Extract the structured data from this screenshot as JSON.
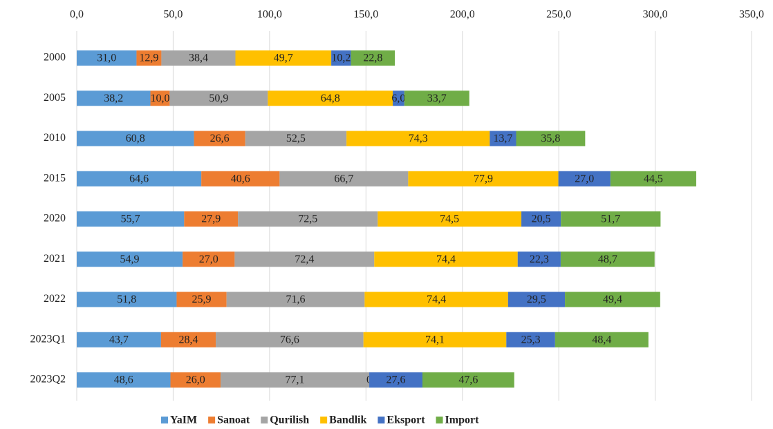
{
  "chart_data": {
    "type": "stacked-bar-horizontal",
    "categories": [
      "2000",
      "2005",
      "2010",
      "2015",
      "2020",
      "2021",
      "2022",
      "2023Q1",
      "2023Q2"
    ],
    "series": [
      {
        "name": "YaIM",
        "color": "#5b9bd5",
        "values": [
          31.0,
          38.2,
          60.8,
          64.6,
          55.7,
          54.9,
          51.8,
          43.7,
          48.6
        ],
        "value_labels": [
          "31,0",
          "38,2",
          "60,8",
          "64,6",
          "55,7",
          "54,9",
          "51,8",
          "43,7",
          "48,6"
        ]
      },
      {
        "name": "Sanoat",
        "color": "#ed7d31",
        "values": [
          12.9,
          10.0,
          26.6,
          40.6,
          27.9,
          27.0,
          25.9,
          28.4,
          26.0
        ],
        "value_labels": [
          "12,9",
          "10,0",
          "26,6",
          "40,6",
          "27,9",
          "27,0",
          "25,9",
          "28,4",
          "26,0"
        ]
      },
      {
        "name": "Qurilish",
        "color": "#a5a5a5",
        "values": [
          38.4,
          50.9,
          52.5,
          66.7,
          72.5,
          72.4,
          71.6,
          76.6,
          77.1
        ],
        "value_labels": [
          "38,4",
          "50,9",
          "52,5",
          "66,7",
          "72,5",
          "72,4",
          "71,6",
          "76,6",
          "77,1"
        ]
      },
      {
        "name": "Bandlik",
        "color": "#ffc000",
        "values": [
          49.7,
          64.8,
          74.3,
          77.9,
          74.5,
          74.4,
          74.4,
          74.1,
          0
        ],
        "value_labels": [
          "49,7",
          "64,8",
          "74,3",
          "77,9",
          "74,5",
          "74,4",
          "74,4",
          "74,1",
          "0"
        ]
      },
      {
        "name": "Eksport",
        "color": "#4472c4",
        "values": [
          10.2,
          6.0,
          13.7,
          27.0,
          20.5,
          22.3,
          29.5,
          25.3,
          27.6
        ],
        "value_labels": [
          "10,2",
          "6,0",
          "13,7",
          "27,0",
          "20,5",
          "22,3",
          "29,5",
          "25,3",
          "27,6"
        ]
      },
      {
        "name": "Import",
        "color": "#70ad47",
        "values": [
          22.8,
          33.7,
          35.8,
          44.5,
          51.7,
          48.7,
          49.4,
          48.4,
          47.6
        ],
        "value_labels": [
          "22,8",
          "33,7",
          "35,8",
          "44,5",
          "51,7",
          "48,7",
          "49,4",
          "48,4",
          "47,6"
        ]
      }
    ],
    "xlim": [
      0,
      350
    ],
    "xticks": [
      {
        "value": 0,
        "label": "0,0"
      },
      {
        "value": 50,
        "label": "50,0"
      },
      {
        "value": 100,
        "label": "100,0"
      },
      {
        "value": 150,
        "label": "150,0"
      },
      {
        "value": 200,
        "label": "200,0"
      },
      {
        "value": 250,
        "label": "250,0"
      },
      {
        "value": 300,
        "label": "300,0"
      },
      {
        "value": 350,
        "label": "350,0"
      }
    ],
    "grid": true,
    "legend": "bottom"
  }
}
